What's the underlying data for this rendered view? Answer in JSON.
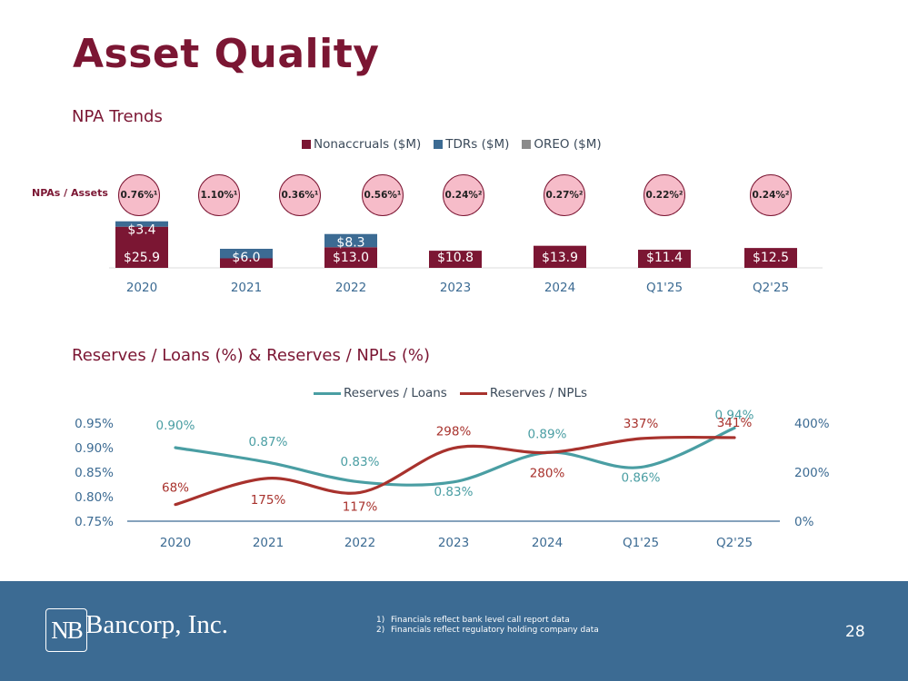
{
  "title": "Asset Quality",
  "npa_section": {
    "title": "NPA Trends",
    "ratio_label": "NPAs / Assets",
    "ratios": [
      "0.76%¹",
      "1.10%¹",
      "0.36%¹",
      "0.56%¹",
      "0.24%²",
      "0.27%²",
      "0.22%²",
      "0.24%²"
    ]
  },
  "reserves_section": {
    "title": "Reserves / Loans (%) & Reserves / NPLs (%)"
  },
  "chart_data": [
    {
      "type": "bar",
      "stacked": true,
      "categories": [
        "2020",
        "2021",
        "2022",
        "2023",
        "2024",
        "Q1'25",
        "Q2'25"
      ],
      "series": [
        {
          "name": "Nonaccruals ($M)",
          "color": "#7b1633",
          "values": [
            25.9,
            6.0,
            13.0,
            10.8,
            13.9,
            11.4,
            12.5
          ],
          "labels": [
            "$25.9",
            "$6.0",
            "$13.0",
            "$10.8",
            "$13.9",
            "$11.4",
            "$12.5"
          ]
        },
        {
          "name": "TDRs ($M)",
          "color": "#3c6b93",
          "values": [
            3.4,
            6.0,
            8.3,
            0,
            0,
            0,
            0
          ],
          "labels": [
            "$3.4",
            "",
            "$8.3",
            "",
            "",
            "",
            ""
          ]
        },
        {
          "name": "OREO ($M)",
          "color": "#8a8a8a",
          "values": [
            0,
            0,
            0,
            0,
            0,
            0,
            0
          ],
          "labels": [
            "",
            "",
            "",
            "",
            "",
            "",
            ""
          ]
        }
      ],
      "legend": "top-center"
    },
    {
      "type": "line",
      "categories": [
        "2020",
        "2021",
        "2022",
        "2023",
        "2024",
        "Q1'25",
        "Q2'25"
      ],
      "series": [
        {
          "name": "Reserves / Loans",
          "axis": "left",
          "color": "#4a9ea3",
          "values": [
            0.9,
            0.87,
            0.83,
            0.83,
            0.89,
            0.86,
            0.94
          ],
          "labels": [
            "0.90%",
            "0.87%",
            "0.83%",
            "0.83%",
            "0.89%",
            "0.86%",
            "0.94%"
          ]
        },
        {
          "name": "Reserves / NPLs",
          "axis": "right",
          "color": "#a8322d",
          "values": [
            68,
            175,
            117,
            298,
            280,
            337,
            341
          ],
          "labels": [
            "68%",
            "175%",
            "117%",
            "298%",
            "280%",
            "337%",
            "341%"
          ]
        }
      ],
      "y_left": {
        "range": [
          0.75,
          0.95
        ],
        "ticks": [
          "0.75%",
          "0.80%",
          "0.85%",
          "0.90%",
          "0.95%"
        ]
      },
      "y_right": {
        "range": [
          0,
          400
        ],
        "ticks": [
          "0%",
          "200%",
          "400%"
        ]
      },
      "legend": "top-center"
    }
  ],
  "footer": {
    "logo_mark": "NB",
    "logo_text": "Bancorp, Inc.",
    "notes": [
      {
        "num": "1)",
        "text": "Financials reflect bank level call report data"
      },
      {
        "num": "2)",
        "text": "Financials reflect regulatory holding company data"
      }
    ],
    "page_number": "28"
  }
}
